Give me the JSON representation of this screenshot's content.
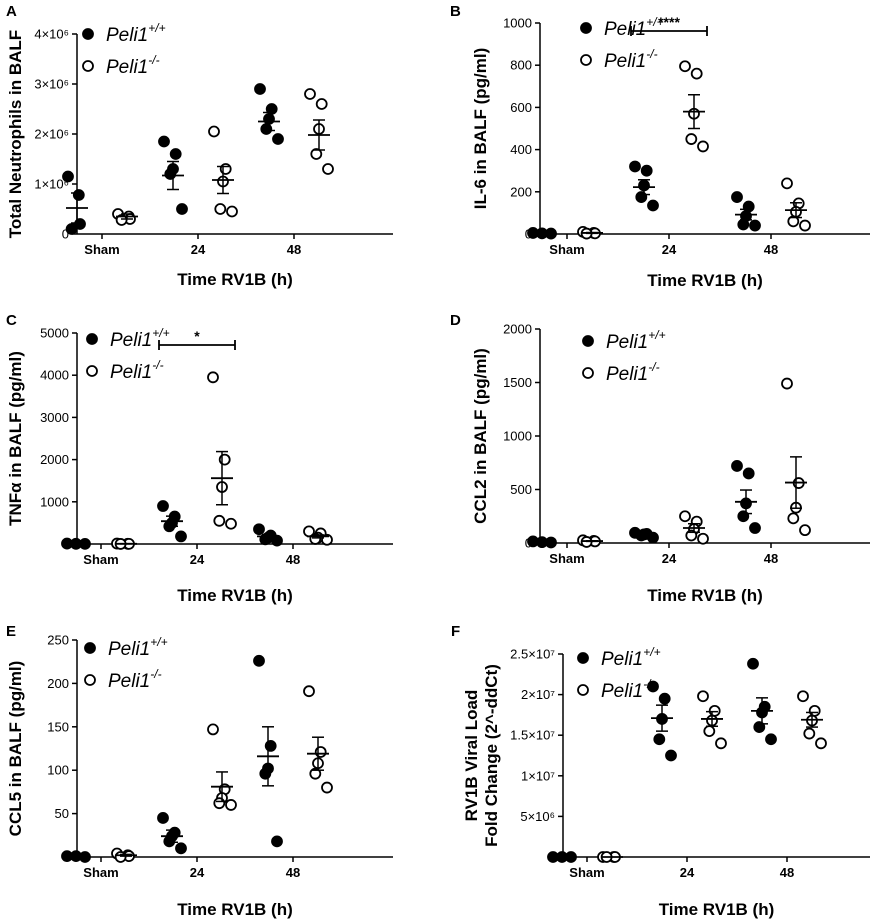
{
  "figure": {
    "legend": {
      "wt": "Peli1",
      "wt_sup": "+/+",
      "ko": "Peli1",
      "ko_sup": "-/-"
    },
    "series_names": [
      "Peli1+/+",
      "Peli1-/-"
    ]
  },
  "chart_data": [
    {
      "panel": "A",
      "type": "scatter",
      "ylabel": "Total Neutrophils in BALF",
      "xlabel": "Time RV1B (h)",
      "categories": [
        "Sham",
        "24",
        "48"
      ],
      "ylim": [
        0,
        4000000
      ],
      "yticks": [
        0,
        1000000,
        2000000,
        3000000,
        4000000
      ],
      "yticklabels": [
        "0",
        "1×10⁶",
        "2×10⁶",
        "3×10⁶",
        "4×10⁶"
      ],
      "series": [
        {
          "name": "Peli1+/+",
          "marker": "filled",
          "points": [
            [
              1150000,
              780000,
              200000,
              100000
            ],
            [
              1850000,
              1600000,
              1300000,
              1200000,
              500000
            ],
            [
              2900000,
              2500000,
              2300000,
              2100000,
              1900000
            ]
          ],
          "mean": [
            520000,
            1170000,
            2250000
          ],
          "sem": [
            300000,
            280000,
            180000
          ]
        },
        {
          "name": "Peli1-/-",
          "marker": "open",
          "points": [
            [
              400000,
              350000,
              300000,
              280000
            ],
            [
              2050000,
              1300000,
              1050000,
              500000,
              450000
            ],
            [
              2800000,
              2600000,
              2100000,
              1600000,
              1300000
            ]
          ],
          "mean": [
            350000,
            1080000,
            1980000
          ],
          "sem": [
            50000,
            270000,
            300000
          ]
        }
      ],
      "significance": []
    },
    {
      "panel": "B",
      "type": "scatter",
      "ylabel": "IL-6 in BALF (pg/ml)",
      "xlabel": "Time RV1B (h)",
      "categories": [
        "Sham",
        "24",
        "48"
      ],
      "ylim": [
        0,
        1000
      ],
      "yticks": [
        0,
        200,
        400,
        600,
        800,
        1000
      ],
      "yticklabels": [
        "0",
        "200",
        "400",
        "600",
        "800",
        "1000"
      ],
      "series": [
        {
          "name": "Peli1+/+",
          "marker": "filled",
          "points": [
            [
              5,
              3,
              2
            ],
            [
              320,
              300,
              230,
              175,
              135
            ],
            [
              175,
              130,
              85,
              45,
              40
            ]
          ],
          "mean": [
            3,
            222,
            92
          ],
          "sem": [
            1,
            35,
            25
          ]
        },
        {
          "name": "Peli1-/-",
          "marker": "open",
          "points": [
            [
              10,
              5,
              3,
              2
            ],
            [
              795,
              760,
              570,
              450,
              415
            ],
            [
              240,
              145,
              105,
              60,
              40
            ]
          ],
          "mean": [
            5,
            580,
            113
          ],
          "sem": [
            2,
            80,
            35
          ]
        }
      ],
      "significance": [
        {
          "label": "****",
          "category": "24"
        }
      ]
    },
    {
      "panel": "C",
      "type": "scatter",
      "ylabel": "TNFα in BALF (pg/ml)",
      "xlabel": "Time RV1B (h)",
      "categories": [
        "Sham",
        "24",
        "48"
      ],
      "ylim": [
        0,
        5000
      ],
      "yticks": [
        0,
        1000,
        2000,
        3000,
        4000,
        5000
      ],
      "yticklabels": [
        "0",
        "1000",
        "2000",
        "3000",
        "4000",
        "5000"
      ],
      "series": [
        {
          "name": "Peli1+/+",
          "marker": "filled",
          "points": [
            [
              10,
              5,
              3
            ],
            [
              900,
              650,
              500,
              420,
              180
            ],
            [
              350,
              200,
              150,
              110,
              80
            ]
          ],
          "mean": [
            5,
            540,
            180
          ],
          "sem": [
            3,
            120,
            45
          ]
        },
        {
          "name": "Peli1-/-",
          "marker": "open",
          "points": [
            [
              10,
              5,
              3,
              2
            ],
            [
              3950,
              2000,
              1350,
              550,
              480
            ],
            [
              300,
              250,
              150,
              120,
              100
            ]
          ],
          "mean": [
            5,
            1560,
            180
          ],
          "sem": [
            2,
            630,
            35
          ]
        }
      ],
      "significance": [
        {
          "label": "*",
          "category": "24"
        }
      ]
    },
    {
      "panel": "D",
      "type": "scatter",
      "ylabel": "CCL2 in BALF (pg/ml)",
      "xlabel": "Time RV1B (h)",
      "categories": [
        "Sham",
        "24",
        "48"
      ],
      "ylim": [
        0,
        2000
      ],
      "yticks": [
        0,
        500,
        1000,
        1500,
        2000
      ],
      "yticklabels": [
        "0",
        "500",
        "1000",
        "1500",
        "2000"
      ],
      "series": [
        {
          "name": "Peli1+/+",
          "marker": "filled",
          "points": [
            [
              15,
              8,
              5
            ],
            [
              95,
              85,
              80,
              70,
              50
            ],
            [
              720,
              650,
              370,
              250,
              140
            ]
          ],
          "mean": [
            10,
            78,
            385
          ],
          "sem": [
            3,
            8,
            110
          ]
        },
        {
          "name": "Peli1-/-",
          "marker": "open",
          "points": [
            [
              25,
              20,
              15,
              10
            ],
            [
              250,
              200,
              130,
              70,
              40
            ],
            [
              1490,
              560,
              330,
              230,
              120
            ]
          ],
          "mean": [
            18,
            140,
            565
          ],
          "sem": [
            3,
            40,
            240
          ]
        }
      ],
      "significance": []
    },
    {
      "panel": "E",
      "type": "scatter",
      "ylabel": "CCL5 in BALF (pg/ml)",
      "xlabel": "Time RV1B (h)",
      "categories": [
        "Sham",
        "24",
        "48"
      ],
      "ylim": [
        0,
        250
      ],
      "yticks": [
        0,
        50,
        100,
        150,
        200,
        250
      ],
      "yticklabels": [
        "0",
        "50",
        "100",
        "150",
        "200",
        "250"
      ],
      "series": [
        {
          "name": "Peli1+/+",
          "marker": "filled",
          "points": [
            [
              1,
              1,
              0
            ],
            [
              45,
              28,
              24,
              18,
              10
            ],
            [
              226,
              128,
              102,
              96,
              18
            ]
          ],
          "mean": [
            1,
            24,
            116
          ],
          "sem": [
            0.5,
            7,
            34
          ]
        },
        {
          "name": "Peli1-/-",
          "marker": "open",
          "points": [
            [
              4,
              2,
              1,
              0
            ],
            [
              147,
              78,
              68,
              62,
              60
            ],
            [
              191,
              121,
              108,
              96,
              80
            ]
          ],
          "mean": [
            2,
            81,
            119
          ],
          "sem": [
            1,
            17,
            19
          ]
        }
      ],
      "significance": []
    },
    {
      "panel": "F",
      "type": "scatter",
      "ylabel": "RV1B Viral Load Fold Change (2^-ddCt)",
      "ylabel_lines": [
        "RV1B Viral Load",
        "Fold Change (2^-ddCt)"
      ],
      "xlabel": "Time RV1B (h)",
      "categories": [
        "Sham",
        "24",
        "48"
      ],
      "ylim": [
        0,
        25000000
      ],
      "yticks": [
        0,
        5000000,
        10000000,
        15000000,
        20000000,
        25000000
      ],
      "yticklabels": [
        "0",
        "5×10⁶",
        "1×10⁷",
        "1.5×10⁷",
        "2×10⁷",
        "2.5×10⁷"
      ],
      "series": [
        {
          "name": "Peli1+/+",
          "marker": "filled",
          "points": [
            [
              0,
              0,
              0
            ],
            [
              21000000,
              19500000,
              17000000,
              14500000,
              12500000
            ],
            [
              23800000,
              18500000,
              17800000,
              16000000,
              14500000
            ]
          ],
          "mean": [
            0,
            17100000,
            18000000
          ],
          "sem": [
            0,
            1600000,
            1600000
          ]
        },
        {
          "name": "Peli1-/-",
          "marker": "open",
          "points": [
            [
              0,
              0,
              0,
              0
            ],
            [
              19800000,
              18000000,
              16800000,
              15500000,
              14000000
            ],
            [
              19800000,
              18000000,
              16800000,
              15200000,
              14000000
            ]
          ],
          "mean": [
            0,
            17000000,
            16900000
          ],
          "sem": [
            0,
            900000,
            900000
          ]
        }
      ],
      "significance": []
    }
  ]
}
